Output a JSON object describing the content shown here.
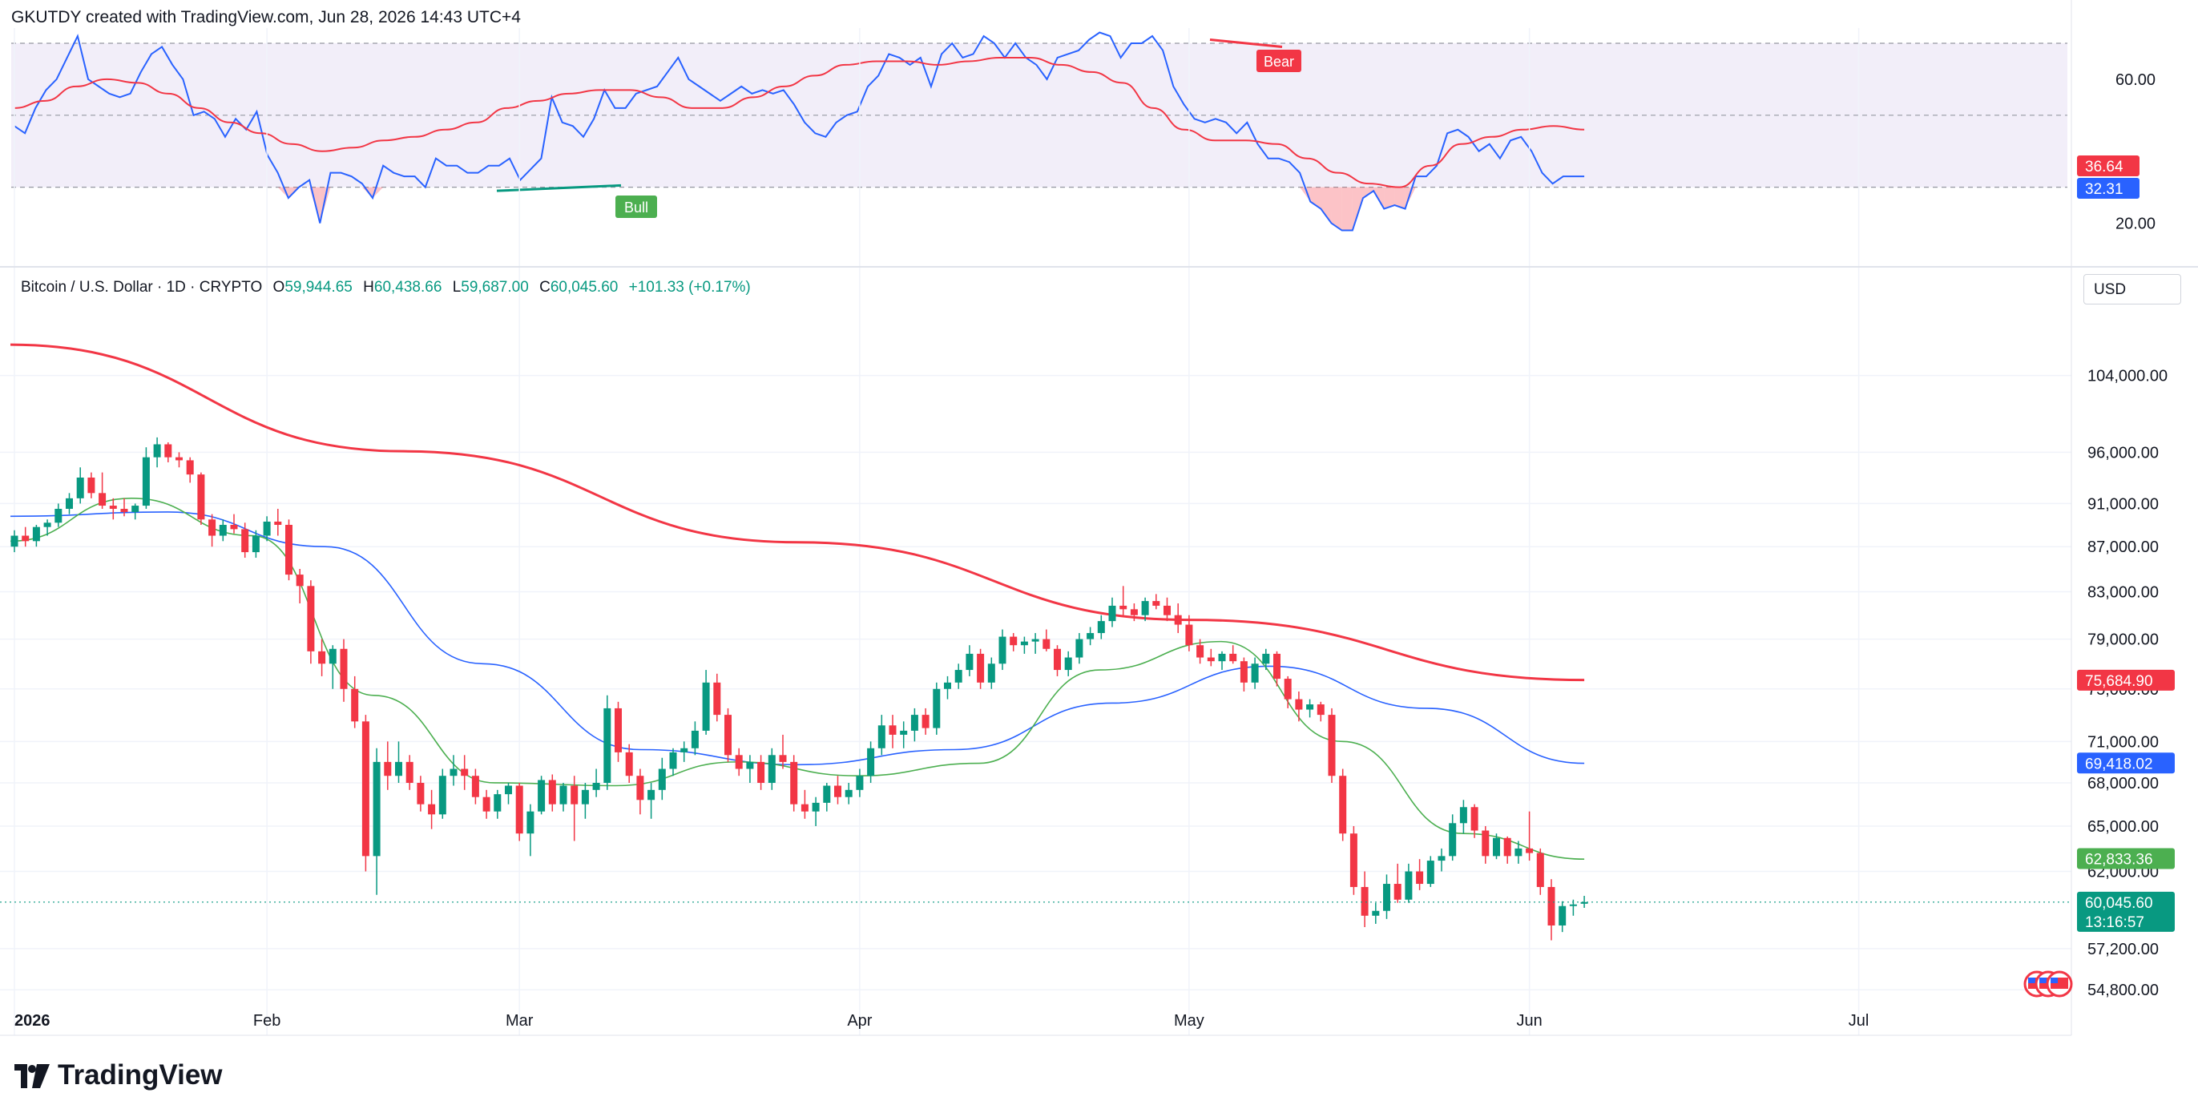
{
  "header": {
    "attribution": "GKUTDY created with TradingView.com, Jun 28, 2026 14:43 UTC+4"
  },
  "legend": {
    "symbol": "Bitcoin / U.S. Dollar · 1D · CRYPTO",
    "open_label": "O",
    "open": "59,944.65",
    "high_label": "H",
    "high": "60,438.66",
    "low_label": "L",
    "low": "59,687.00",
    "close_label": "C",
    "close": "60,045.60",
    "change": "+101.33 (+0.17%)"
  },
  "currency_button": "USD",
  "footer": {
    "brand": "TradingView"
  },
  "colors": {
    "up": "#089981",
    "down": "#f23645",
    "ma200": "#f23645",
    "ma50": "#2962ff",
    "ma20": "#4caf50",
    "rsi": "#2962ff",
    "rsi_ma": "#f23645",
    "rsi_band": "#7e57c2"
  },
  "chart_data": [
    {
      "type": "candlestick",
      "x_axis": {
        "tick_labels": [
          "2026",
          "Feb",
          "Mar",
          "Apr",
          "May",
          "Jun",
          "Jul"
        ]
      },
      "y_axis": {
        "scale": "log",
        "tick_labels": [
          "104,000.00",
          "96,000.00",
          "91,000.00",
          "87,000.00",
          "83,000.00",
          "79,000.00",
          "75,000.00",
          "71,000.00",
          "68,000.00",
          "65,000.00",
          "62,000.00",
          "57,200.00",
          "54,800.00"
        ],
        "range": [
          53900,
          112000
        ]
      },
      "series": [
        {
          "name": "MA200",
          "values": [
            107400,
            96100,
            87400,
            80600,
            75700
          ],
          "dates": [
            "2026-01-01",
            "2026-02-20",
            "2026-04-05",
            "2026-05-15",
            "2026-06-27"
          ]
        },
        {
          "name": "MA50",
          "values": [
            89800,
            90200,
            87000,
            77000,
            70400,
            69300,
            70400,
            73900,
            76800,
            73500,
            69400
          ]
        },
        {
          "name": "MA20",
          "values": [
            87500,
            91500,
            88000,
            74500,
            68000,
            67800,
            69500,
            68500,
            69400,
            76500,
            78800,
            71000,
            64500,
            62800
          ]
        }
      ],
      "candles": [
        [
          87000,
          88500,
          86500,
          88000
        ],
        [
          88000,
          88800,
          87000,
          87500
        ],
        [
          87500,
          89000,
          87000,
          88800
        ],
        [
          88800,
          89500,
          88000,
          89200
        ],
        [
          89200,
          91000,
          88800,
          90500
        ],
        [
          90500,
          92000,
          90000,
          91500
        ],
        [
          91500,
          94500,
          91000,
          93500
        ],
        [
          93500,
          94000,
          91500,
          92000
        ],
        [
          92000,
          94000,
          90500,
          90800
        ],
        [
          90800,
          91500,
          89500,
          90500
        ],
        [
          90500,
          91500,
          89800,
          90200
        ],
        [
          90200,
          91000,
          89500,
          90800
        ],
        [
          90800,
          96500,
          90500,
          95500
        ],
        [
          95500,
          97500,
          94500,
          96800
        ],
        [
          96800,
          97000,
          95000,
          95500
        ],
        [
          95500,
          96000,
          94500,
          95200
        ],
        [
          95200,
          95500,
          93000,
          93800
        ],
        [
          93800,
          94000,
          89000,
          89500
        ],
        [
          89500,
          90000,
          87000,
          88000
        ],
        [
          88000,
          89500,
          87500,
          89000
        ],
        [
          89000,
          90000,
          88200,
          88600
        ],
        [
          88600,
          89200,
          86000,
          86500
        ],
        [
          86500,
          88500,
          86000,
          88000
        ],
        [
          88000,
          89800,
          87500,
          89300
        ],
        [
          89300,
          90500,
          88000,
          89000
        ],
        [
          89000,
          89500,
          84000,
          84500
        ],
        [
          84500,
          85000,
          82000,
          83500
        ],
        [
          83500,
          84000,
          77000,
          78000
        ],
        [
          78000,
          79000,
          76000,
          77000
        ],
        [
          77000,
          78500,
          75000,
          78200
        ],
        [
          78200,
          79000,
          74000,
          75000
        ],
        [
          75000,
          76000,
          72000,
          72500
        ],
        [
          72500,
          73000,
          62000,
          63000
        ],
        [
          63000,
          70500,
          60500,
          69500
        ],
        [
          69500,
          71000,
          67500,
          68500
        ],
        [
          68500,
          71000,
          68000,
          69500
        ],
        [
          69500,
          70000,
          67500,
          68000
        ],
        [
          68000,
          68500,
          66000,
          66500
        ],
        [
          66500,
          67500,
          64800,
          65800
        ],
        [
          65800,
          69000,
          65500,
          68500
        ],
        [
          68500,
          70000,
          67800,
          69000
        ],
        [
          69000,
          70000,
          67500,
          68500
        ],
        [
          68500,
          69000,
          66500,
          67000
        ],
        [
          67000,
          67500,
          65500,
          66000
        ],
        [
          66000,
          67500,
          65500,
          67200
        ],
        [
          67200,
          68000,
          66500,
          67800
        ],
        [
          67800,
          68000,
          64000,
          64500
        ],
        [
          64500,
          66500,
          63000,
          66000
        ],
        [
          66000,
          68500,
          65800,
          68200
        ],
        [
          68200,
          68600,
          66000,
          66500
        ],
        [
          66500,
          68000,
          66000,
          67800
        ],
        [
          67800,
          68500,
          64000,
          66500
        ],
        [
          66500,
          68000,
          65500,
          67500
        ],
        [
          67500,
          69000,
          67000,
          68000
        ],
        [
          68000,
          74500,
          67500,
          73500
        ],
        [
          73500,
          74000,
          69500,
          70200
        ],
        [
          70200,
          70800,
          68000,
          68500
        ],
        [
          68500,
          69000,
          65800,
          66800
        ],
        [
          66800,
          68000,
          65500,
          67500
        ],
        [
          67500,
          69800,
          66800,
          69000
        ],
        [
          69000,
          70500,
          68500,
          70200
        ],
        [
          70200,
          71000,
          69500,
          70500
        ],
        [
          70500,
          72500,
          70000,
          71800
        ],
        [
          71800,
          76500,
          71500,
          75500
        ],
        [
          75500,
          76200,
          72500,
          73000
        ],
        [
          73000,
          73500,
          69500,
          70000
        ],
        [
          70000,
          70500,
          68500,
          69000
        ],
        [
          69000,
          70000,
          68000,
          69500
        ],
        [
          69500,
          70000,
          67500,
          68000
        ],
        [
          68000,
          70500,
          67500,
          70000
        ],
        [
          70000,
          71500,
          69000,
          69500
        ],
        [
          69500,
          70000,
          66000,
          66500
        ],
        [
          66500,
          67500,
          65500,
          66000
        ],
        [
          66000,
          67000,
          65000,
          66600
        ],
        [
          66600,
          68000,
          66000,
          67800
        ],
        [
          67800,
          68500,
          66500,
          67000
        ],
        [
          67000,
          68000,
          66500,
          67500
        ],
        [
          67500,
          69000,
          67000,
          68500
        ],
        [
          68500,
          71000,
          68000,
          70500
        ],
        [
          70500,
          73000,
          70000,
          72200
        ],
        [
          72200,
          73000,
          70500,
          71500
        ],
        [
          71500,
          72500,
          70500,
          71800
        ],
        [
          71800,
          73500,
          71000,
          73000
        ],
        [
          73000,
          73500,
          71500,
          72000
        ],
        [
          72000,
          75500,
          71500,
          75000
        ],
        [
          75000,
          76000,
          74200,
          75500
        ],
        [
          75500,
          77000,
          75000,
          76500
        ],
        [
          76500,
          78500,
          76000,
          77800
        ],
        [
          77800,
          78200,
          75000,
          75500
        ],
        [
          75500,
          77500,
          75000,
          77000
        ],
        [
          77000,
          79800,
          76500,
          79200
        ],
        [
          79200,
          79500,
          78000,
          78500
        ],
        [
          78500,
          79200,
          77800,
          78800
        ],
        [
          78800,
          79500,
          77800,
          79000
        ],
        [
          79000,
          79800,
          78000,
          78200
        ],
        [
          78200,
          78500,
          76000,
          76500
        ],
        [
          76500,
          78000,
          76000,
          77500
        ],
        [
          77500,
          79500,
          77000,
          79000
        ],
        [
          79000,
          80000,
          78500,
          79500
        ],
        [
          79500,
          81000,
          79000,
          80500
        ],
        [
          80500,
          82500,
          80000,
          81800
        ],
        [
          81800,
          83500,
          81000,
          81500
        ],
        [
          81500,
          82000,
          80500,
          81000
        ],
        [
          81000,
          82500,
          80500,
          82200
        ],
        [
          82200,
          82800,
          81500,
          81800
        ],
        [
          81800,
          82500,
          80500,
          81000
        ],
        [
          81000,
          82000,
          79500,
          80200
        ],
        [
          80200,
          81000,
          78000,
          78500
        ],
        [
          78500,
          79000,
          77000,
          77500
        ],
        [
          77500,
          78200,
          76800,
          77200
        ],
        [
          77200,
          78000,
          76500,
          77800
        ],
        [
          77800,
          78500,
          77000,
          77200
        ],
        [
          77200,
          77500,
          74800,
          75500
        ],
        [
          75500,
          77500,
          75000,
          77000
        ],
        [
          77000,
          78200,
          76500,
          77800
        ],
        [
          77800,
          78000,
          75200,
          75800
        ],
        [
          75800,
          76000,
          73500,
          74200
        ],
        [
          74200,
          74800,
          72500,
          73400
        ],
        [
          73400,
          74200,
          72800,
          73800
        ],
        [
          73800,
          74000,
          72500,
          73000
        ],
        [
          73000,
          73500,
          68000,
          68500
        ],
        [
          68500,
          69000,
          64000,
          64500
        ],
        [
          64500,
          65000,
          60500,
          61000
        ],
        [
          61000,
          62000,
          58500,
          59200
        ],
        [
          59200,
          60000,
          58700,
          59500
        ],
        [
          59500,
          61800,
          59000,
          61200
        ],
        [
          61200,
          62500,
          60000,
          60200
        ],
        [
          60200,
          62500,
          60000,
          62000
        ],
        [
          62000,
          62800,
          60800,
          61200
        ],
        [
          61200,
          63000,
          61000,
          62700
        ],
        [
          62700,
          63500,
          62000,
          63000
        ],
        [
          63000,
          65800,
          62700,
          65200
        ],
        [
          65200,
          66800,
          64500,
          66300
        ],
        [
          66300,
          66500,
          64200,
          64700
        ],
        [
          64700,
          65000,
          62500,
          63000
        ],
        [
          63000,
          64500,
          62800,
          64200
        ],
        [
          64200,
          64300,
          62500,
          63000
        ],
        [
          63000,
          64000,
          62500,
          63500
        ],
        [
          63500,
          66000,
          62700,
          63200
        ],
        [
          63200,
          63500,
          60500,
          61000
        ],
        [
          61000,
          61500,
          57700,
          58600
        ],
        [
          58600,
          60100,
          58200,
          59800
        ],
        [
          59800,
          60200,
          59200,
          59900
        ],
        [
          59944.65,
          60438.66,
          59687.0,
          60045.6
        ]
      ],
      "price_tags": [
        {
          "label": "75,684.90",
          "value": 75684.9,
          "color": "#f23645"
        },
        {
          "label": "69,418.02",
          "value": 69418.02,
          "color": "#2962ff"
        },
        {
          "label": "62,833.36",
          "value": 62833.36,
          "color": "#4caf50"
        },
        {
          "label": "60,045.60",
          "value": 60045.6,
          "color": "#089981",
          "countdown": "13:16:57"
        }
      ]
    },
    {
      "type": "line",
      "name": "RSI",
      "y_axis": {
        "tick_labels": [
          "60.00",
          "20.00"
        ],
        "range": [
          13,
          72
        ],
        "band": [
          30,
          70
        ],
        "mid": 50
      },
      "series": [
        {
          "name": "RSI",
          "values": [
            47,
            45,
            52,
            57,
            60,
            66,
            72,
            60,
            58,
            56,
            55,
            56,
            62,
            67,
            69,
            64,
            60,
            50,
            51,
            49,
            44,
            49,
            46,
            51,
            39,
            34,
            27,
            30,
            32,
            20,
            34,
            34,
            33,
            31,
            27,
            36,
            34,
            33,
            33,
            30,
            38,
            36,
            36,
            34,
            34,
            36,
            36,
            38,
            32,
            35,
            38,
            55,
            48,
            47,
            44,
            49,
            57,
            52,
            52,
            56,
            57,
            58,
            62,
            66,
            60,
            58,
            56,
            54,
            56,
            58,
            56,
            57,
            56,
            57,
            53,
            48,
            45,
            44,
            48,
            50,
            51,
            58,
            61,
            67,
            66,
            64,
            66,
            58,
            67,
            70,
            66,
            67,
            72,
            70,
            66,
            70,
            66,
            64,
            60,
            66,
            67,
            68,
            71,
            73,
            72,
            66,
            70,
            70,
            72,
            68,
            58,
            53,
            49,
            48,
            49,
            48,
            45,
            48,
            42,
            38,
            38,
            37,
            34,
            26,
            24,
            20,
            18,
            18,
            27,
            29,
            24,
            25,
            24,
            33,
            33,
            36,
            45,
            46,
            44,
            40,
            42,
            38,
            43,
            44,
            40,
            34,
            31,
            33,
            33,
            33
          ]
        },
        {
          "name": "RSI MA",
          "values": [
            52,
            54,
            58,
            60,
            59,
            56,
            52,
            48,
            45,
            42,
            40,
            41,
            43,
            44,
            46,
            48,
            52,
            54,
            56,
            57,
            57,
            55,
            52,
            52,
            55,
            58,
            61,
            64,
            65,
            65,
            64,
            65,
            66,
            66,
            64,
            62,
            59,
            52,
            46,
            43,
            43,
            42,
            38,
            34,
            31,
            30,
            36,
            42,
            44,
            46,
            47,
            46
          ]
        }
      ],
      "annotations": [
        "Bear",
        "Bull"
      ],
      "last_tags": [
        {
          "label": "36.64",
          "color": "#f23645"
        },
        {
          "label": "32.31",
          "color": "#2962ff"
        }
      ]
    }
  ]
}
